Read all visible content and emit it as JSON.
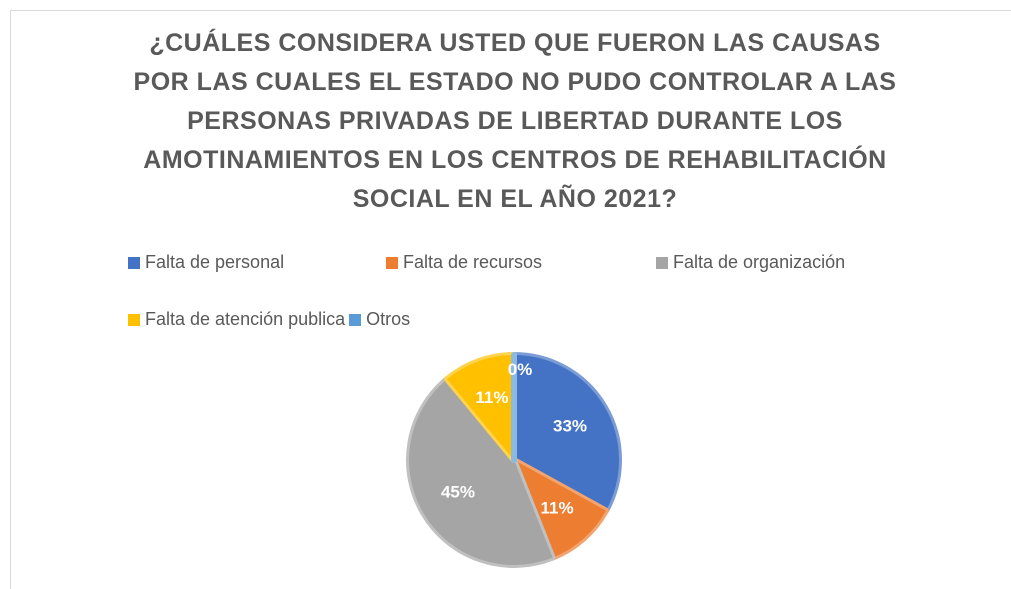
{
  "chart_data": {
    "type": "pie",
    "title": "¿CUÁLES CONSIDERA USTED QUE FUERON LAS CAUSAS POR LAS CUALES EL ESTADO NO PUDO CONTROLAR A LAS PERSONAS PRIVADAS DE LIBERTAD DURANTE LOS AMOTINAMIENTOS EN LOS CENTROS DE REHABILITACIÓN SOCIAL EN EL AÑO 2021?",
    "categories": [
      "Falta de personal",
      "Falta de recursos",
      "Falta de organización",
      "Falta de atención publica",
      "Otros"
    ],
    "values": [
      33,
      11,
      45,
      11,
      0
    ],
    "value_labels": [
      "33%",
      "11%",
      "45%",
      "11%",
      "0%"
    ],
    "colors": [
      "#4472c4",
      "#ed7d31",
      "#a5a5a5",
      "#ffc000",
      "#5b9bd5"
    ],
    "legend": "top"
  }
}
